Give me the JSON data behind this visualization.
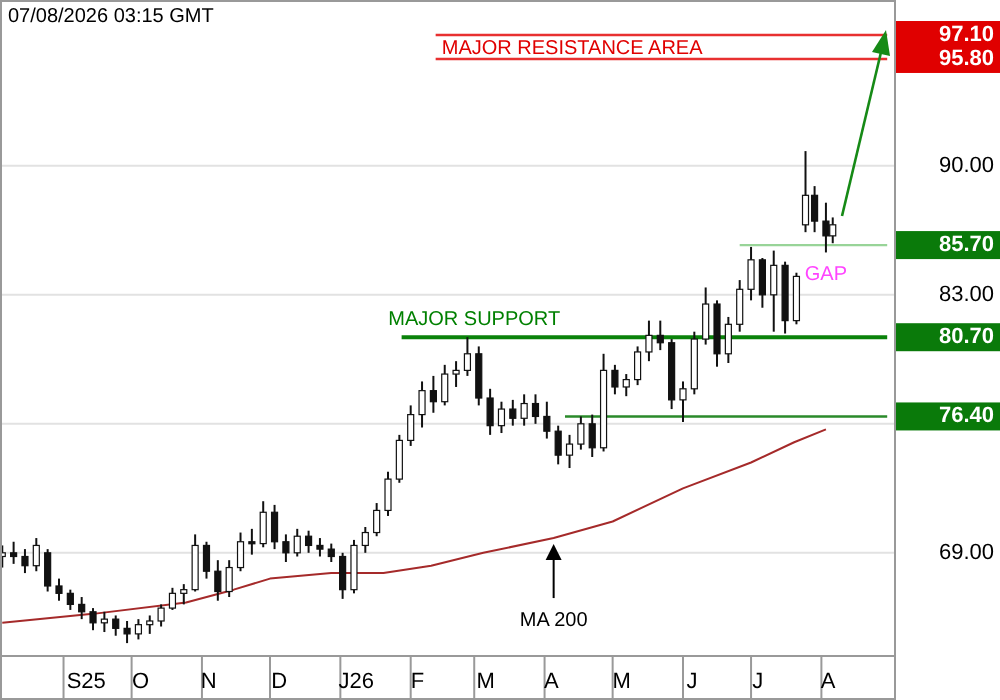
{
  "chart_data": {
    "type": "candlestick",
    "title": "07/08/2026 03:15 GMT",
    "x": [
      "2025-08-05",
      "2025-08-10",
      "2025-08-15",
      "2025-08-20",
      "2025-08-25",
      "2025-08-30",
      "2025-09-04",
      "2025-09-09",
      "2025-09-14",
      "2025-09-19",
      "2025-09-24",
      "2025-09-29",
      "2025-10-04",
      "2025-10-09",
      "2025-10-14",
      "2025-10-19",
      "2025-10-24",
      "2025-10-29",
      "2025-11-03",
      "2025-11-08",
      "2025-11-13",
      "2025-11-18",
      "2025-11-23",
      "2025-11-28",
      "2025-12-03",
      "2025-12-08",
      "2025-12-13",
      "2025-12-18",
      "2025-12-23",
      "2025-12-28",
      "2026-01-02",
      "2026-01-07",
      "2026-01-12",
      "2026-01-17",
      "2026-01-22",
      "2026-01-27",
      "2026-02-01",
      "2026-02-06",
      "2026-02-11",
      "2026-02-16",
      "2026-02-21",
      "2026-02-26",
      "2026-03-03",
      "2026-03-08",
      "2026-03-13",
      "2026-03-18",
      "2026-03-23",
      "2026-03-28",
      "2026-04-02",
      "2026-04-07",
      "2026-04-12",
      "2026-04-17",
      "2026-04-22",
      "2026-04-27",
      "2026-05-02",
      "2026-05-07",
      "2026-05-12",
      "2026-05-17",
      "2026-05-22",
      "2026-05-27",
      "2026-06-01",
      "2026-06-06",
      "2026-06-11",
      "2026-06-16",
      "2026-06-21",
      "2026-06-26",
      "2026-07-01",
      "2026-07-06",
      "2026-07-11",
      "2026-07-16",
      "2026-07-21",
      "2026-07-25",
      "2026-07-29",
      "2026-08-03",
      "2026-08-06"
    ],
    "ohlc": [
      [
        68.8,
        69.4,
        68.2,
        69.0
      ],
      [
        69.0,
        69.6,
        68.4,
        68.8
      ],
      [
        68.8,
        69.2,
        67.9,
        68.3
      ],
      [
        68.3,
        69.8,
        68.0,
        69.4
      ],
      [
        69.0,
        69.2,
        66.9,
        67.2
      ],
      [
        67.2,
        67.6,
        66.4,
        66.8
      ],
      [
        66.8,
        67.0,
        65.9,
        66.2
      ],
      [
        66.2,
        66.6,
        65.4,
        65.8
      ],
      [
        65.8,
        66.0,
        64.8,
        65.2
      ],
      [
        65.2,
        65.8,
        64.7,
        65.4
      ],
      [
        65.4,
        65.6,
        64.5,
        64.9
      ],
      [
        64.9,
        65.3,
        64.1,
        64.6
      ],
      [
        64.6,
        65.4,
        64.3,
        65.1
      ],
      [
        65.1,
        65.6,
        64.6,
        65.3
      ],
      [
        65.3,
        66.2,
        65.0,
        66.0
      ],
      [
        66.0,
        67.1,
        65.9,
        66.8
      ],
      [
        66.8,
        67.3,
        66.2,
        67.0
      ],
      [
        67.0,
        70.0,
        66.9,
        69.4
      ],
      [
        69.4,
        69.6,
        67.6,
        68.0
      ],
      [
        68.0,
        68.6,
        66.4,
        66.9
      ],
      [
        66.9,
        68.6,
        66.6,
        68.2
      ],
      [
        68.2,
        70.1,
        68.0,
        69.6
      ],
      [
        69.6,
        70.3,
        68.9,
        69.5
      ],
      [
        69.5,
        71.8,
        69.3,
        71.2
      ],
      [
        71.2,
        71.6,
        69.2,
        69.6
      ],
      [
        69.6,
        70.0,
        68.5,
        69.0
      ],
      [
        69.0,
        70.3,
        68.8,
        69.9
      ],
      [
        69.9,
        70.2,
        69.0,
        69.4
      ],
      [
        69.4,
        69.8,
        68.8,
        69.2
      ],
      [
        69.2,
        69.5,
        68.5,
        68.8
      ],
      [
        68.8,
        69.0,
        66.5,
        67.0
      ],
      [
        67.0,
        69.7,
        66.8,
        69.4
      ],
      [
        69.4,
        70.4,
        69.0,
        70.1
      ],
      [
        70.1,
        71.7,
        69.9,
        71.3
      ],
      [
        71.3,
        73.4,
        71.0,
        73.0
      ],
      [
        73.0,
        75.4,
        72.8,
        75.1
      ],
      [
        75.1,
        77.0,
        74.8,
        76.5
      ],
      [
        76.5,
        78.3,
        75.8,
        77.8
      ],
      [
        77.8,
        78.6,
        76.6,
        77.2
      ],
      [
        77.2,
        79.2,
        77.0,
        78.7
      ],
      [
        78.7,
        79.4,
        78.0,
        78.9
      ],
      [
        78.9,
        80.7,
        78.6,
        79.8
      ],
      [
        79.8,
        80.2,
        77.0,
        77.4
      ],
      [
        77.4,
        77.9,
        75.4,
        75.9
      ],
      [
        75.9,
        77.2,
        75.5,
        76.8
      ],
      [
        76.8,
        77.3,
        75.9,
        76.3
      ],
      [
        76.3,
        77.6,
        75.9,
        77.1
      ],
      [
        77.1,
        77.6,
        76.0,
        76.4
      ],
      [
        76.4,
        77.2,
        75.2,
        75.6
      ],
      [
        75.6,
        75.9,
        73.8,
        74.3
      ],
      [
        74.3,
        75.4,
        73.6,
        74.9
      ],
      [
        74.9,
        76.4,
        74.6,
        76.0
      ],
      [
        76.0,
        76.5,
        74.2,
        74.7
      ],
      [
        74.7,
        79.8,
        74.5,
        78.9
      ],
      [
        78.9,
        79.2,
        77.6,
        78.0
      ],
      [
        78.0,
        78.7,
        77.5,
        78.4
      ],
      [
        78.4,
        80.2,
        78.1,
        79.9
      ],
      [
        79.9,
        81.6,
        79.4,
        80.8
      ],
      [
        80.8,
        81.6,
        80.0,
        80.4
      ],
      [
        80.4,
        80.6,
        76.8,
        77.3
      ],
      [
        77.3,
        78.3,
        76.1,
        77.9
      ],
      [
        77.9,
        81.0,
        77.6,
        80.6
      ],
      [
        80.6,
        83.4,
        80.3,
        82.5
      ],
      [
        82.5,
        82.7,
        79.1,
        79.8
      ],
      [
        79.8,
        81.8,
        79.3,
        81.4
      ],
      [
        81.4,
        83.8,
        81.0,
        83.3
      ],
      [
        83.3,
        85.6,
        82.7,
        84.9
      ],
      [
        84.9,
        85.0,
        82.3,
        83.0
      ],
      [
        83.0,
        85.4,
        81.0,
        84.6
      ],
      [
        84.6,
        84.8,
        80.9,
        81.6
      ],
      [
        81.6,
        84.2,
        81.4,
        84.0
      ],
      [
        86.8,
        90.8,
        86.4,
        88.4
      ],
      [
        88.4,
        88.9,
        86.4,
        87.0
      ],
      [
        87.0,
        88.0,
        85.3,
        86.2
      ],
      [
        86.2,
        87.2,
        85.8,
        86.8
      ]
    ],
    "series": [
      {
        "type": "line",
        "name": "MA 200",
        "color": "#a52a2a",
        "x": [
          "2025-08-05",
          "2025-09-15",
          "2025-10-25",
          "2025-11-15",
          "2025-12-01",
          "2025-12-28",
          "2026-01-20",
          "2026-02-10",
          "2026-03-05",
          "2026-04-05",
          "2026-05-01",
          "2026-06-01",
          "2026-07-01",
          "2026-07-20",
          "2026-08-03"
        ],
        "values": [
          65.2,
          65.7,
          66.3,
          67.0,
          67.6,
          67.9,
          67.9,
          68.3,
          69.0,
          69.8,
          70.7,
          72.5,
          73.9,
          75.0,
          75.7
        ]
      },
      {
        "type": "line",
        "color": "#e83030",
        "x": [
          "2026-02-12",
          "2026-08-30"
        ],
        "values": [
          97.1,
          97.1
        ]
      },
      {
        "type": "line",
        "color": "#e83030",
        "x": [
          "2026-02-12",
          "2026-08-30"
        ],
        "values": [
          95.8,
          95.8
        ]
      },
      {
        "type": "line",
        "color": "#98d498",
        "x": [
          "2026-06-26",
          "2026-08-30"
        ],
        "values": [
          85.7,
          85.7
        ]
      },
      {
        "type": "line",
        "color": "#0a820a",
        "x": [
          "2026-01-28",
          "2026-08-30"
        ],
        "values": [
          80.7,
          80.7
        ]
      },
      {
        "type": "line",
        "color": "#2a8a2a",
        "x": [
          "2026-04-10",
          "2026-08-30"
        ],
        "values": [
          76.4,
          76.4
        ]
      }
    ],
    "xlim": [
      "2025-08-04",
      "2026-09-02"
    ],
    "xticks": [
      {
        "value": "2025-09-11",
        "label": "S25"
      },
      {
        "value": "2025-10-05",
        "label": "O"
      },
      {
        "value": "2025-11-04",
        "label": "N"
      },
      {
        "value": "2025-12-05",
        "label": "D"
      },
      {
        "value": "2026-01-08",
        "label": "J26"
      },
      {
        "value": "2026-02-04",
        "label": "F"
      },
      {
        "value": "2026-03-06",
        "label": "M"
      },
      {
        "value": "2026-04-04",
        "label": "A"
      },
      {
        "value": "2026-05-05",
        "label": "M"
      },
      {
        "value": "2026-06-05",
        "label": "J"
      },
      {
        "value": "2026-07-04",
        "label": "J"
      },
      {
        "value": "2026-08-04",
        "label": "A"
      }
    ],
    "ylim": [
      63.4,
      99.0
    ],
    "yticks": [
      {
        "value": 69,
        "label": "69.00"
      },
      {
        "value": 76,
        "label": null
      },
      {
        "value": 76.4,
        "label": "76.40"
      },
      {
        "value": 80.7,
        "label": "80.70"
      },
      {
        "value": 83,
        "label": "83.00"
      },
      {
        "value": 85.7,
        "label": "85.70"
      },
      {
        "value": 90,
        "label": "90.00"
      },
      {
        "value": 95.8,
        "label": "95.80"
      },
      {
        "value": 97.1,
        "label": "97.10"
      }
    ],
    "grid": "y",
    "annotations": [
      "MAJOR RESISTANCE AREA",
      {
        "text": "MAJOR SUPPORT",
        "x": "2026-03-01",
        "y": 80.7
      },
      {
        "text": "GAP",
        "x": "2026-08-03",
        "y": 85.3
      }
    ]
  }
}
